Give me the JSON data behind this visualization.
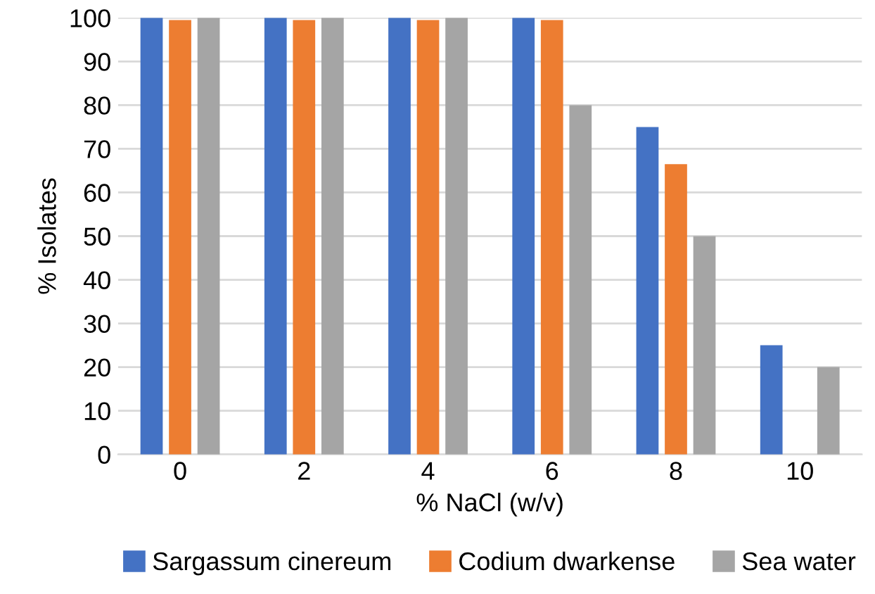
{
  "chart_data": {
    "type": "bar",
    "xlabel": "% NaCl (w/v)",
    "ylabel": "% Isolates",
    "categories": [
      "0",
      "2",
      "4",
      "6",
      "8",
      "10"
    ],
    "series": [
      {
        "name": "Sargassum cinereum",
        "color": "#4472c4",
        "values": [
          100,
          100,
          100,
          100,
          75,
          25
        ]
      },
      {
        "name": "Codium dwarkense",
        "color": "#ed7d31",
        "values": [
          99.5,
          99.5,
          99.5,
          99.5,
          66.5,
          0
        ]
      },
      {
        "name": "Sea water",
        "color": "#a5a5a5",
        "values": [
          100,
          100,
          100,
          80,
          50,
          20
        ]
      }
    ],
    "ylim": [
      0,
      100
    ],
    "yticks": [
      0,
      10,
      20,
      30,
      40,
      50,
      60,
      70,
      80,
      90,
      100
    ],
    "grid": "y",
    "legend": "bottom"
  }
}
